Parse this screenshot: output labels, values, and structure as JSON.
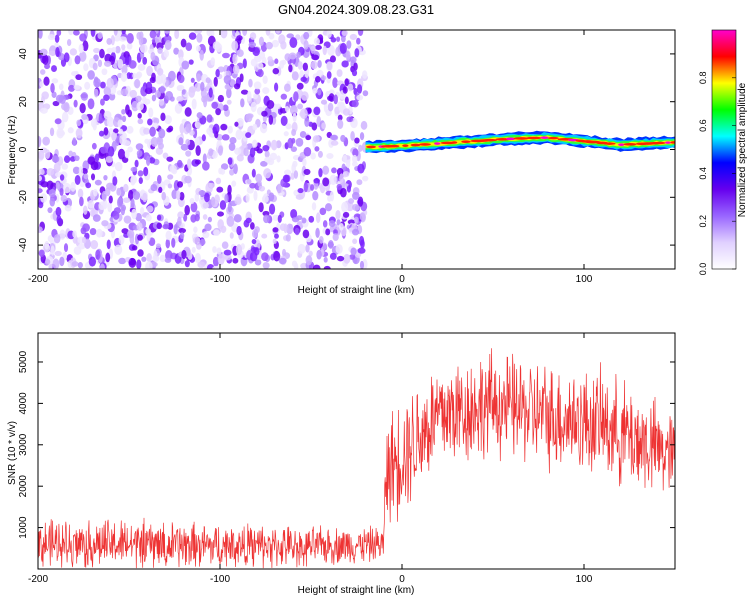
{
  "title": "GN04.2024.309.08.23.G31",
  "chart_data": [
    {
      "type": "heatmap",
      "title": "GN04.2024.309.08.23.G31",
      "xlabel": "Height of straight line (km)",
      "ylabel": "Frequency (Hz)",
      "xlim": [
        -200,
        150
      ],
      "ylim": [
        -50,
        50
      ],
      "xticks": [
        -200,
        -100,
        0,
        100
      ],
      "yticks": [
        -40,
        -20,
        0,
        20,
        40
      ],
      "colorbar": {
        "label": "Normalized spectral amplitude",
        "range": [
          0,
          1
        ],
        "ticks": [
          "0.0",
          "0.2",
          "0.4",
          "0.6",
          "0.8"
        ],
        "colors": [
          "#ffffff",
          "#e0d0ff",
          "#9966ff",
          "#6600ee",
          "#0000ff",
          "#00ffff",
          "#00ff00",
          "#ffff00",
          "#ff0000",
          "#ff00cc"
        ]
      },
      "regions": [
        {
          "name": "noise",
          "x_range": [
            -200,
            -20
          ],
          "freq_range": [
            -50,
            50
          ],
          "amplitude": 0.1
        },
        {
          "name": "signal",
          "x_range": [
            -20,
            150
          ],
          "freq_at_x": [
            [
              -20,
              1
            ],
            [
              0,
              1.5
            ],
            [
              30,
              3
            ],
            [
              60,
              4.5
            ],
            [
              80,
              5
            ],
            [
              100,
              3.5
            ],
            [
              120,
              2
            ],
            [
              150,
              3
            ]
          ],
          "half_width_hz": 2.5,
          "peak_amplitude": 1.0
        }
      ]
    },
    {
      "type": "line",
      "xlabel": "Height of straight line (km)",
      "ylabel": "SNR (10 * v/v)",
      "xlim": [
        -200,
        150
      ],
      "ylim": [
        0,
        5700
      ],
      "xticks": [
        -200,
        -100,
        0,
        100
      ],
      "yticks": [
        1000,
        2000,
        3000,
        4000,
        5000
      ],
      "color": "#ee3333",
      "envelope": [
        {
          "x": -200,
          "mean": 600,
          "spread": 700
        },
        {
          "x": -150,
          "mean": 600,
          "spread": 700
        },
        {
          "x": -100,
          "mean": 550,
          "spread": 650
        },
        {
          "x": -50,
          "mean": 550,
          "spread": 550
        },
        {
          "x": -10,
          "mean": 600,
          "spread": 500
        },
        {
          "x": -9,
          "mean": 2300,
          "spread": 1500
        },
        {
          "x": 0,
          "mean": 2800,
          "spread": 1700
        },
        {
          "x": 20,
          "mean": 3700,
          "spread": 1600
        },
        {
          "x": 50,
          "mean": 4000,
          "spread": 1500
        },
        {
          "x": 80,
          "mean": 3700,
          "spread": 1500
        },
        {
          "x": 110,
          "mean": 3500,
          "spread": 1500
        },
        {
          "x": 130,
          "mean": 3100,
          "spread": 1500
        },
        {
          "x": 150,
          "mean": 2700,
          "spread": 1200
        }
      ]
    }
  ]
}
